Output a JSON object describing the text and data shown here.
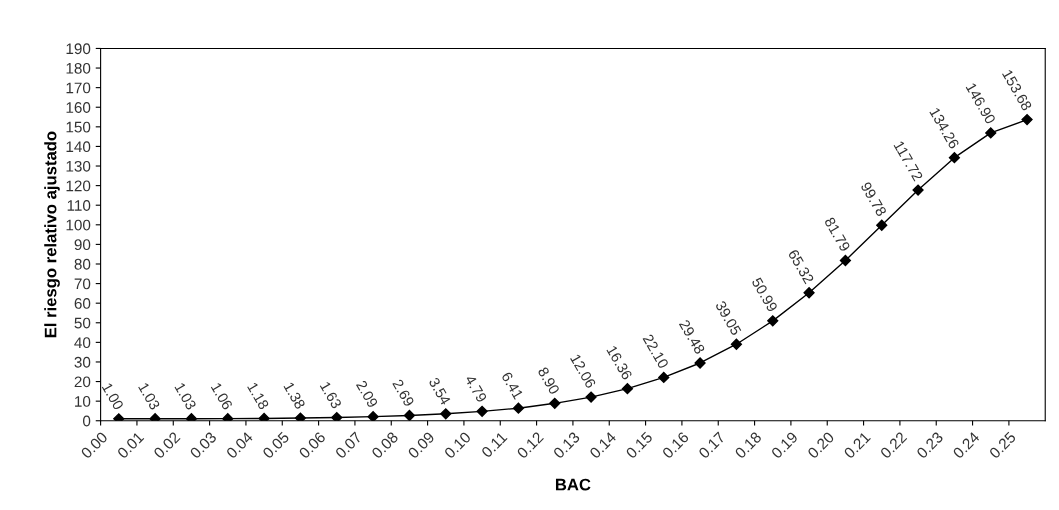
{
  "chart_data": {
    "type": "line",
    "xlabel": "BAC",
    "ylabel": "El riesgo relativo ajustado",
    "x": [
      0.005,
      0.015,
      0.025,
      0.035,
      0.045,
      0.055,
      0.065,
      0.075,
      0.085,
      0.095,
      0.105,
      0.115,
      0.125,
      0.135,
      0.145,
      0.155,
      0.165,
      0.175,
      0.185,
      0.195,
      0.205,
      0.215,
      0.225,
      0.235,
      0.245,
      0.255
    ],
    "series": [
      {
        "color": "#000000",
        "values": [
          1.0,
          1.03,
          1.03,
          1.06,
          1.18,
          1.38,
          1.63,
          2.09,
          2.69,
          3.54,
          4.79,
          6.41,
          8.9,
          12.06,
          16.36,
          22.1,
          29.48,
          39.05,
          50.99,
          65.32,
          81.79,
          99.78,
          117.72,
          134.26,
          146.9,
          153.68
        ]
      }
    ],
    "value_labels": [
      "1.00",
      "1.03",
      "1.03",
      "1.06",
      "1.18",
      "1.38",
      "1.63",
      "2.09",
      "2.69",
      "3.54",
      "4.79",
      "6.41",
      "8.90",
      "12.06",
      "16.36",
      "22.10",
      "29.48",
      "39.05",
      "50.99",
      "65.32",
      "81.79",
      "99.78",
      "117.72",
      "134.26",
      "146.90",
      "153.68"
    ],
    "marker": "diamond",
    "line_style": "solid",
    "grid": false,
    "xlim": [
      0,
      0.26
    ],
    "xticks": [
      {
        "value": 0,
        "label": "0.00"
      },
      {
        "value": 0.01,
        "label": "0.01"
      },
      {
        "value": 0.02,
        "label": "0.02"
      },
      {
        "value": 0.03,
        "label": "0.03"
      },
      {
        "value": 0.04,
        "label": "0.04"
      },
      {
        "value": 0.05,
        "label": "0.05"
      },
      {
        "value": 0.06,
        "label": "0.06"
      },
      {
        "value": 0.07,
        "label": "0.07"
      },
      {
        "value": 0.08,
        "label": "0.08"
      },
      {
        "value": 0.09,
        "label": "0.09"
      },
      {
        "value": 0.1,
        "label": "0.10"
      },
      {
        "value": 0.11,
        "label": "0.11"
      },
      {
        "value": 0.12,
        "label": "0.12"
      },
      {
        "value": 0.13,
        "label": "0.13"
      },
      {
        "value": 0.14,
        "label": "0.14"
      },
      {
        "value": 0.15,
        "label": "0.15"
      },
      {
        "value": 0.16,
        "label": "0.16"
      },
      {
        "value": 0.17,
        "label": "0.17"
      },
      {
        "value": 0.18,
        "label": "0.18"
      },
      {
        "value": 0.19,
        "label": "0.19"
      },
      {
        "value": 0.2,
        "label": "0.20"
      },
      {
        "value": 0.21,
        "label": "0.21"
      },
      {
        "value": 0.22,
        "label": "0.22"
      },
      {
        "value": 0.23,
        "label": "0.23"
      },
      {
        "value": 0.24,
        "label": "0.24"
      },
      {
        "value": 0.25,
        "label": "0.25"
      }
    ],
    "ylim": [
      0,
      190
    ],
    "yticks": [
      0,
      10,
      20,
      30,
      40,
      50,
      60,
      70,
      80,
      90,
      100,
      110,
      120,
      130,
      140,
      150,
      160,
      170,
      180,
      190
    ]
  }
}
